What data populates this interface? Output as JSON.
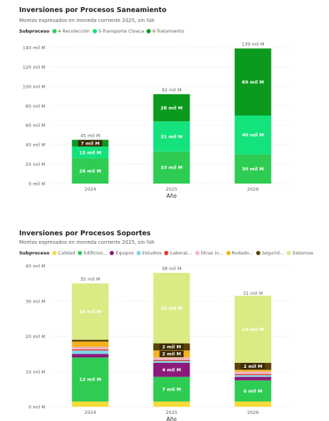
{
  "chart_data": [
    {
      "type": "bar",
      "stacked": true,
      "title": "Inversiones por Procesos Saneamiento",
      "subtitle": "Montos expresados en moneda corriente 2025, sin IVA",
      "legend_title": "Subproceso",
      "legend_position": "top-left",
      "xlabel": "Año",
      "categories": [
        "2024",
        "2025",
        "2026"
      ],
      "ylim": [
        0,
        140
      ],
      "yticks": [
        0,
        20,
        40,
        60,
        80,
        100,
        120,
        140
      ],
      "ytick_labels": [
        "0 mil M",
        "20 mil M",
        "40 mil M",
        "60 mil M",
        "80 mil M",
        "100 mil M",
        "120 mil M",
        "140 mil M"
      ],
      "grid": true,
      "series": [
        {
          "name": "4-Recolección",
          "color": "#2ecc52",
          "values": [
            26,
            33,
            30
          ],
          "labels": [
            "26 mil M",
            "33 mil M",
            "30 mil M"
          ]
        },
        {
          "name": "5-Transporte Cloaca",
          "color": "#14e27c",
          "values": [
            12,
            31,
            40
          ],
          "labels": [
            "12 mil M",
            "31 mil M",
            "40 mil M"
          ]
        },
        {
          "name": "6-Tratamiento",
          "color": "#0c9a1e",
          "values": [
            7,
            28,
            69
          ],
          "labels": [
            "7 mil M",
            "28 mil M",
            "69 mil M"
          ]
        }
      ],
      "totals": [
        "45 mil M",
        "92 mil M",
        "139 mil M"
      ],
      "total_values": [
        45,
        92,
        139
      ]
    },
    {
      "type": "bar",
      "stacked": true,
      "title": "Inversiones por Procesos Soportes",
      "subtitle": "Montos expresados en moneda corriente 2025, sin IVA",
      "legend_title": "Subproceso",
      "legend_position": "top-left",
      "xlabel": "Año",
      "categories": [
        "2024",
        "2025",
        "2026"
      ],
      "ylim": [
        0,
        40
      ],
      "yticks": [
        0,
        10,
        20,
        30,
        40
      ],
      "ytick_labels": [
        "0 mil M",
        "10 mil M",
        "20 mil M",
        "30 mil M",
        "40 mil M"
      ],
      "grid": true,
      "series": [
        {
          "name": "Calidad",
          "color": "#f5dc3a",
          "values": [
            1.5,
            1.5,
            1.5
          ],
          "labels": [
            "",
            "",
            ""
          ]
        },
        {
          "name": "Edificios...",
          "color": "#2ecc52",
          "values": [
            12.5,
            7,
            6
          ],
          "labels": [
            "12 mil M",
            "7 mil M",
            "6 mil M"
          ]
        },
        {
          "name": "Equipos",
          "color": "#8b1a7b",
          "values": [
            1,
            4,
            1
          ],
          "labels": [
            "",
            "4 mil M",
            ""
          ]
        },
        {
          "name": "Estudios",
          "color": "#7fd6e6",
          "values": [
            1,
            0.5,
            0.5
          ],
          "labels": [
            "",
            "",
            ""
          ]
        },
        {
          "name": "Laborat...",
          "color": "#e8352b",
          "values": [
            0.3,
            0.3,
            0.3
          ],
          "labels": [
            "",
            "",
            ""
          ]
        },
        {
          "name": "Otras in...",
          "color": "#f2b5c5",
          "values": [
            0.7,
            0.7,
            0.7
          ],
          "labels": [
            "",
            "",
            ""
          ]
        },
        {
          "name": "Rodado...",
          "color": "#f5b21c",
          "values": [
            1.5,
            2,
            0.5
          ],
          "labels": [
            "",
            "2 mil M",
            ""
          ]
        },
        {
          "name": "Segurid...",
          "color": "#5a4208",
          "values": [
            0.5,
            2,
            2
          ],
          "labels": [
            "",
            "2 mil M",
            "2 mil M"
          ]
        },
        {
          "name": "Sistemas",
          "color": "#dbea84",
          "values": [
            16,
            20,
            19
          ],
          "labels": [
            "16 mil M",
            "20 mil M",
            "19 mil M"
          ]
        }
      ],
      "totals": [
        "35 mil M",
        "38 mil M",
        "31 mil M"
      ],
      "total_values": [
        35,
        38,
        31
      ]
    }
  ]
}
